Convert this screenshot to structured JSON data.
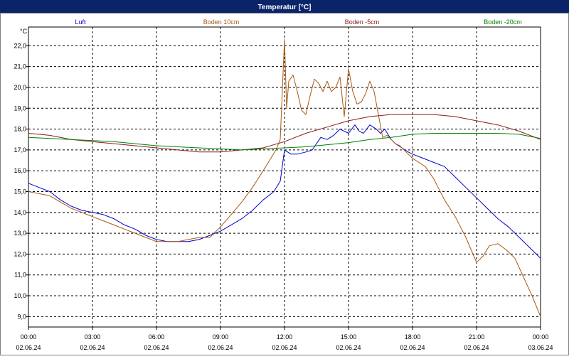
{
  "chart_data": {
    "type": "line",
    "title": "Temperatur [°C]",
    "ylabel": "°C",
    "xlabel": "",
    "ylim": [
      8.5,
      22.9
    ],
    "xlim": [
      0,
      24
    ],
    "grid": true,
    "legend_position": "top",
    "y_ticks": [
      "22,0",
      "21,0",
      "20,0",
      "19,0",
      "18,0",
      "17,0",
      "16,0",
      "15,0",
      "14,0",
      "13,0",
      "12,0",
      "11,0",
      "10,0",
      "9,0"
    ],
    "x_ticks": [
      {
        "time": "00:00",
        "date": "02.06.24"
      },
      {
        "time": "03:00",
        "date": "02.06.24"
      },
      {
        "time": "06:00",
        "date": "02.06.24"
      },
      {
        "time": "09:00",
        "date": "02.06.24"
      },
      {
        "time": "12:00",
        "date": "02.06.24"
      },
      {
        "time": "15:00",
        "date": "02.06.24"
      },
      {
        "time": "18:00",
        "date": "02.06.24"
      },
      {
        "time": "21:00",
        "date": "02.06.24"
      },
      {
        "time": "00:00",
        "date": "03.06.24"
      }
    ],
    "series": [
      {
        "name": "Luft",
        "color": "#0000d0",
        "x": [
          0,
          0.5,
          1,
          1.5,
          2,
          2.5,
          3,
          3.5,
          4,
          4.5,
          5,
          5.5,
          6,
          6.5,
          7,
          7.5,
          8,
          8.5,
          9,
          9.5,
          10,
          10.5,
          11,
          11.5,
          11.8,
          12,
          12.3,
          12.6,
          13,
          13.3,
          13.7,
          14,
          14.3,
          14.6,
          15,
          15.3,
          15.5,
          15.7,
          16,
          16.3,
          16.5,
          16.7,
          17,
          17.2,
          17.5,
          17.8,
          18,
          18.5,
          19,
          19.5,
          20,
          20.5,
          21,
          21.5,
          22,
          22.5,
          23,
          23.5,
          24
        ],
        "values": [
          15.4,
          15.2,
          15.0,
          14.6,
          14.3,
          14.1,
          14.0,
          13.9,
          13.7,
          13.4,
          13.2,
          12.9,
          12.7,
          12.6,
          12.6,
          12.6,
          12.7,
          12.9,
          13.1,
          13.4,
          13.7,
          14.1,
          14.6,
          15.0,
          15.5,
          17.0,
          16.8,
          16.8,
          16.9,
          17.0,
          17.6,
          17.5,
          17.7,
          18.0,
          17.8,
          18.2,
          17.9,
          17.8,
          18.2,
          18.0,
          17.8,
          18.0,
          17.5,
          17.3,
          17.1,
          16.9,
          16.8,
          16.6,
          16.4,
          16.2,
          15.7,
          15.2,
          14.7,
          14.2,
          13.7,
          13.3,
          12.8,
          12.3,
          11.8
        ]
      },
      {
        "name": "Boden 10cm",
        "color": "#a85810",
        "x": [
          0,
          0.5,
          1,
          1.5,
          2,
          2.5,
          3,
          3.5,
          4,
          4.5,
          5,
          5.5,
          6,
          6.5,
          7,
          7.5,
          8,
          8.5,
          9,
          9.5,
          10,
          10.5,
          11,
          11.3,
          11.6,
          11.8,
          12.0,
          12.1,
          12.2,
          12.4,
          12.6,
          12.8,
          13.0,
          13.2,
          13.4,
          13.6,
          13.8,
          14.0,
          14.2,
          14.4,
          14.6,
          14.8,
          15.0,
          15.2,
          15.4,
          15.6,
          15.8,
          16.0,
          16.2,
          16.4,
          16.6,
          16.8,
          17.0,
          17.2,
          17.4,
          17.6,
          17.8,
          18.0,
          18.3,
          18.6,
          19,
          19.5,
          20,
          20.5,
          21,
          21.3,
          21.6,
          22,
          22.4,
          22.8,
          23.2,
          23.6,
          24
        ],
        "values": [
          15.0,
          14.9,
          14.8,
          14.5,
          14.2,
          14.0,
          13.8,
          13.6,
          13.4,
          13.2,
          13.0,
          12.8,
          12.6,
          12.6,
          12.6,
          12.7,
          12.8,
          12.8,
          13.3,
          13.9,
          14.5,
          15.2,
          16.0,
          16.5,
          17.0,
          17.5,
          22.3,
          19.0,
          20.3,
          20.6,
          19.8,
          18.9,
          18.7,
          19.6,
          20.4,
          20.2,
          19.8,
          20.3,
          19.8,
          20.0,
          20.5,
          18.6,
          20.9,
          19.8,
          19.2,
          19.3,
          19.7,
          20.3,
          19.8,
          18.7,
          17.6,
          17.7,
          17.5,
          17.3,
          17.2,
          17.0,
          16.8,
          16.6,
          16.4,
          16.2,
          15.6,
          14.6,
          13.8,
          12.8,
          11.6,
          11.9,
          12.4,
          12.5,
          12.2,
          11.8,
          10.9,
          10.0,
          9.0
        ]
      },
      {
        "name": "Boden -5cm",
        "color": "#8b1a1a",
        "x": [
          0,
          1,
          2,
          3,
          4,
          5,
          6,
          7,
          8,
          9,
          10,
          11,
          12,
          13,
          14,
          15,
          16,
          17,
          18,
          19,
          20,
          21,
          22,
          23,
          24
        ],
        "values": [
          17.8,
          17.7,
          17.5,
          17.4,
          17.3,
          17.2,
          17.1,
          17.0,
          16.9,
          16.9,
          17.0,
          17.1,
          17.4,
          17.8,
          18.1,
          18.4,
          18.6,
          18.7,
          18.7,
          18.7,
          18.6,
          18.4,
          18.2,
          17.9,
          17.5
        ]
      },
      {
        "name": "Boden -20cm",
        "color": "#008000",
        "x": [
          0,
          1,
          2,
          3,
          4,
          5,
          6,
          7,
          8,
          9,
          10,
          11,
          12,
          13,
          14,
          15,
          16,
          17,
          18,
          19,
          20,
          21,
          22,
          23,
          24
        ],
        "values": [
          17.6,
          17.55,
          17.5,
          17.45,
          17.4,
          17.3,
          17.2,
          17.15,
          17.1,
          17.05,
          17.0,
          17.05,
          17.1,
          17.15,
          17.25,
          17.35,
          17.5,
          17.6,
          17.75,
          17.8,
          17.8,
          17.8,
          17.8,
          17.75,
          17.55
        ]
      }
    ]
  }
}
